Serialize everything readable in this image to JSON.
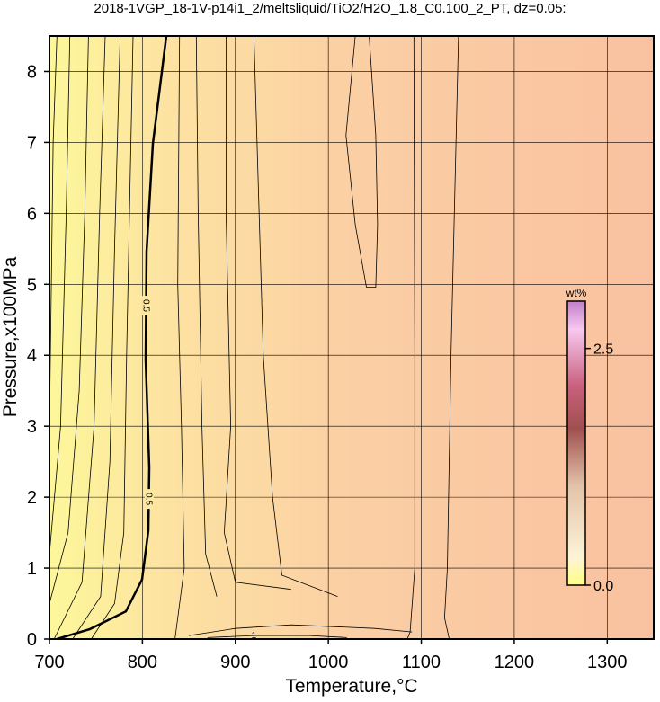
{
  "chart_data": {
    "type": "contour",
    "title": "2018-1VGP_18-1V-p14i1_2/meltsliquid/TiO2/H2O_1.8_C0.100_2_PT, dz=0.05:",
    "x_label": "Temperature,°C",
    "y_label": "Pressure,x100MPa",
    "xlim": [
      700,
      1350
    ],
    "ylim": [
      0,
      8.5
    ],
    "xticks": [
      700,
      800,
      900,
      1000,
      1100,
      1200,
      1300
    ],
    "yticks": [
      0,
      1,
      2,
      3,
      4,
      5,
      6,
      7,
      8
    ],
    "grid": true,
    "contours": [
      {
        "level": 0.5,
        "bold": true,
        "x": [
          708,
          743.5,
          782.2,
          799.6,
          806.4,
          807.4,
          803.5,
          804.5,
          811.2,
          825.7
        ],
        "y": [
          0,
          0.14,
          0.39,
          0.84,
          1.53,
          2.42,
          3.94,
          5.46,
          6.98,
          8.5
        ]
      },
      {
        "level": 1,
        "x": [
          870,
          920,
          980,
          1020
        ],
        "y": [
          0.02,
          0.05,
          0.05,
          0.02
        ]
      },
      {
        "x": [
          700,
          702,
          704,
          708
        ],
        "y": [
          3,
          5,
          7,
          8.5
        ]
      },
      {
        "x": [
          700,
          712,
          718,
          722
        ],
        "y": [
          1.2,
          3,
          6,
          8.5
        ]
      },
      {
        "x": [
          700,
          720,
          732,
          738,
          742
        ],
        "y": [
          0.5,
          1.5,
          3.5,
          6,
          8.5
        ]
      },
      {
        "x": [
          705,
          735,
          748,
          754,
          760
        ],
        "y": [
          0,
          0.8,
          3,
          6,
          8.5
        ]
      },
      {
        "x": [
          725,
          755,
          765,
          770,
          776
        ],
        "y": [
          0,
          0.6,
          2.5,
          5.5,
          8.5
        ]
      },
      {
        "x": [
          745,
          770,
          780,
          783,
          790
        ],
        "y": [
          0,
          0.5,
          1.5,
          4,
          8.5
        ]
      },
      {
        "x": [
          835,
          845,
          842,
          838,
          840
        ],
        "y": [
          0,
          1,
          3,
          5,
          8.5
        ]
      },
      {
        "x": [
          880,
          868,
          864,
          860,
          858
        ],
        "y": [
          0.6,
          1.2,
          3,
          6,
          8.5
        ]
      },
      {
        "x": [
          960,
          900,
          888,
          895,
          890,
          890
        ],
        "y": [
          0.7,
          0.8,
          1.5,
          3,
          6,
          8.5
        ]
      },
      {
        "x": [
          1010,
          950,
          940,
          930,
          920
        ],
        "y": [
          0.6,
          0.9,
          2,
          4,
          8.5
        ]
      },
      {
        "x": [
          1029,
          1019,
          1029,
          1041,
          1051,
          1053,
          1051,
          1044
        ],
        "y": [
          8.5,
          7.1,
          5.84,
          4.96,
          4.96,
          5.84,
          7.1,
          8.5
        ]
      },
      {
        "x": [
          1092,
          1093,
          1093,
          1088,
          1085
        ],
        "y": [
          8.5,
          4,
          1,
          0.1,
          0
        ]
      },
      {
        "x": [
          1130,
          1125,
          1128,
          1132,
          1140
        ],
        "y": [
          0,
          0.3,
          1,
          4,
          8.5
        ]
      },
      {
        "x": [
          850,
          900,
          960,
          1050,
          1090
        ],
        "y": [
          0.05,
          0.15,
          0.2,
          0.15,
          0.1
        ]
      }
    ],
    "colorbar": {
      "label": "wt%",
      "lim": [
        0,
        3
      ],
      "ticks": [
        {
          "value": 0,
          "label": "0.0"
        },
        2.5
      ]
    }
  }
}
